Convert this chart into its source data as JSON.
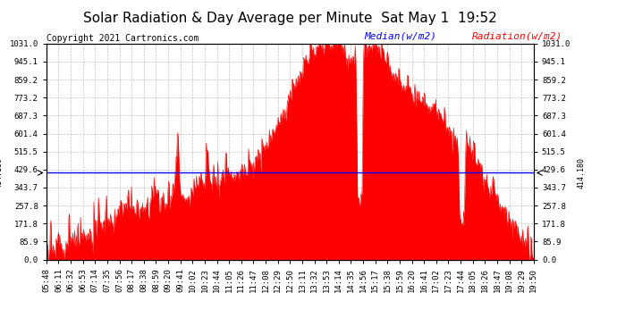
{
  "title": "Solar Radiation & Day Average per Minute  Sat May 1  19:52",
  "copyright": "Copyright 2021 Cartronics.com",
  "legend_median": "Median(w/m2)",
  "legend_radiation": "Radiation(w/m2)",
  "median_value": 414.18,
  "ymin": 0.0,
  "ymax": 1031.0,
  "yticks": [
    0.0,
    85.9,
    171.8,
    257.8,
    343.7,
    429.6,
    515.5,
    601.4,
    687.3,
    773.2,
    859.2,
    945.1,
    1031.0
  ],
  "median_label": "414.180",
  "fill_color": "#FF0000",
  "median_color": "#0000FF",
  "background_color": "#FFFFFF",
  "grid_color": "#AAAAAA",
  "title_fontsize": 11,
  "copyright_fontsize": 7,
  "tick_fontsize": 6.5,
  "legend_fontsize": 8,
  "xtick_labels": [
    "05:48",
    "06:11",
    "06:32",
    "06:53",
    "07:14",
    "07:35",
    "07:56",
    "08:17",
    "08:38",
    "08:59",
    "09:20",
    "09:41",
    "10:02",
    "10:23",
    "10:44",
    "11:05",
    "11:26",
    "11:47",
    "12:08",
    "12:29",
    "12:50",
    "13:11",
    "13:32",
    "13:53",
    "14:14",
    "14:35",
    "14:56",
    "15:17",
    "15:38",
    "15:59",
    "16:20",
    "16:41",
    "17:02",
    "17:23",
    "17:44",
    "18:05",
    "18:26",
    "18:47",
    "19:08",
    "19:29",
    "19:50"
  ]
}
